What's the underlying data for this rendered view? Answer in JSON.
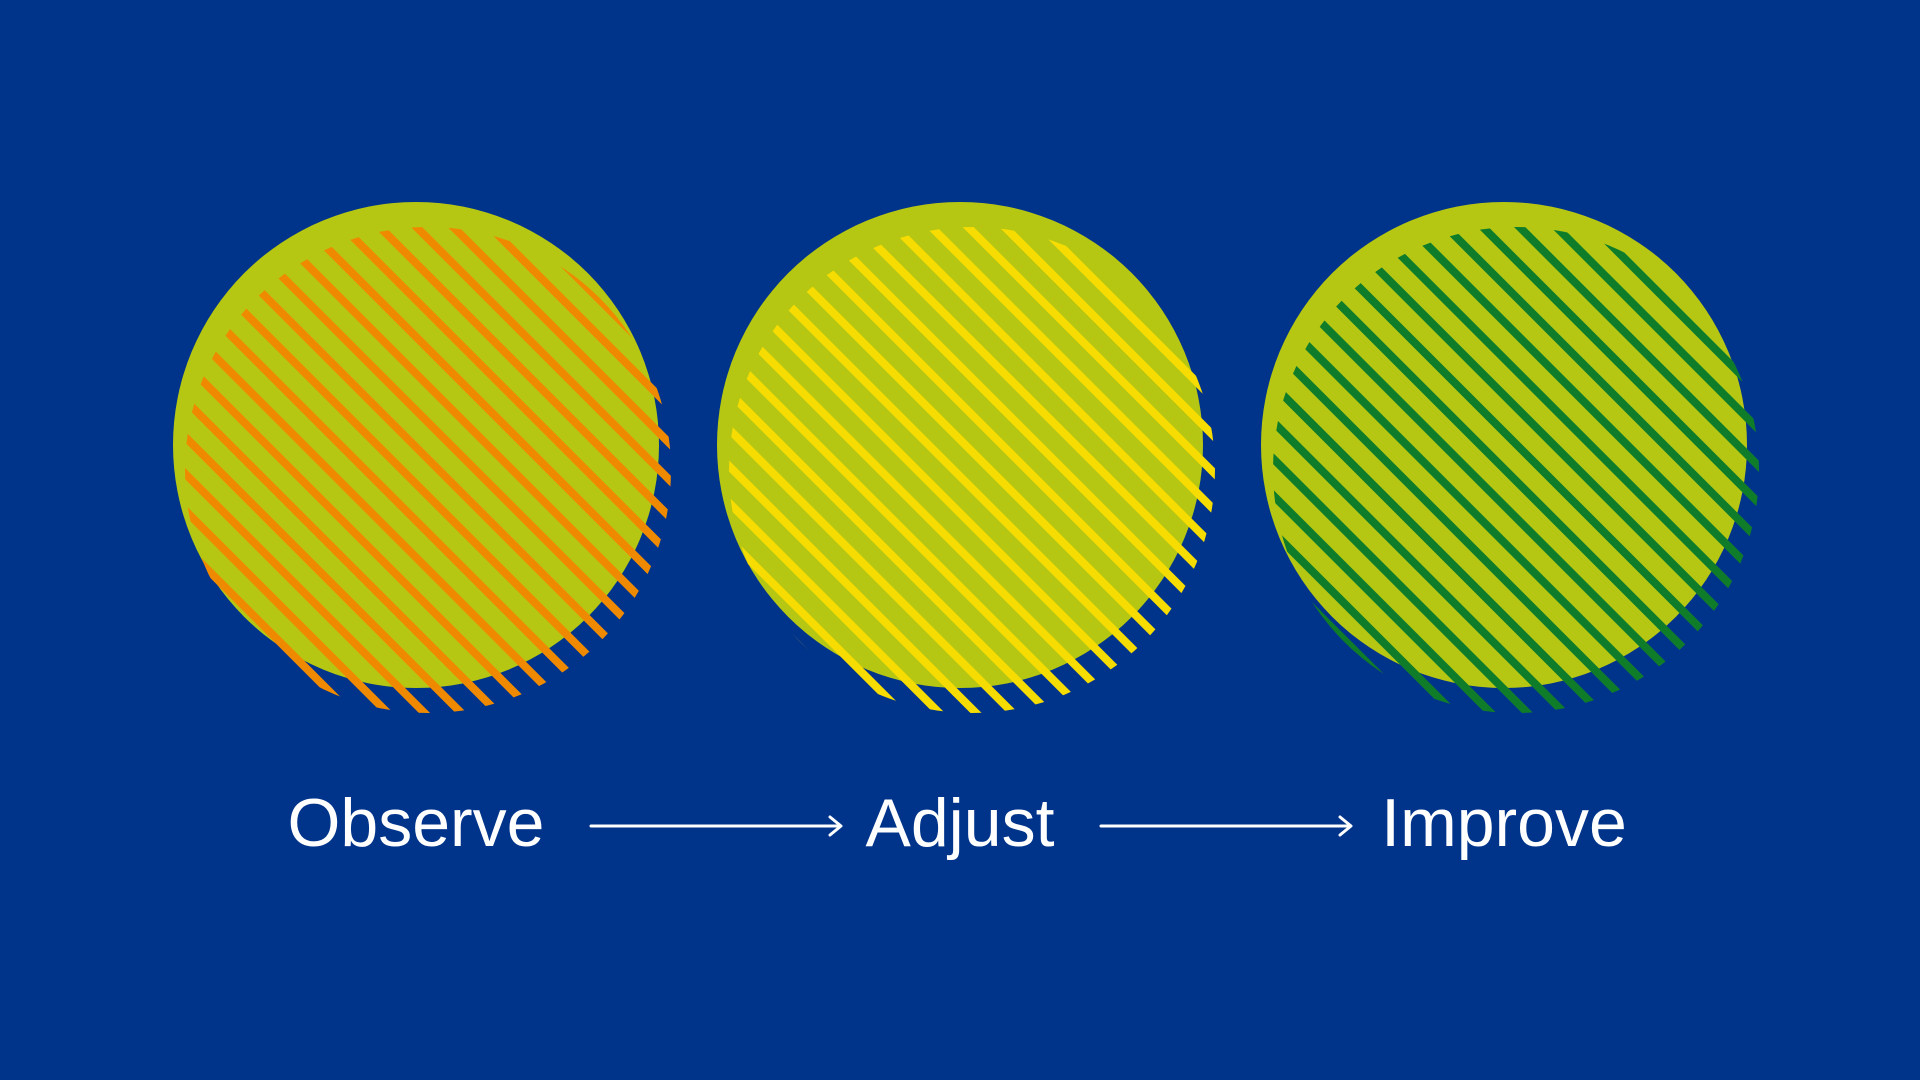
{
  "background": "#00338a",
  "circle_color": "#b5c713",
  "steps": [
    {
      "label": "Observe",
      "stripe_color": "#ef8a00"
    },
    {
      "label": "Adjust",
      "stripe_color": "#f6dc00"
    },
    {
      "label": "Improve",
      "stripe_color": "#0f7c2a"
    }
  ],
  "arrows": [
    {
      "from": "Observe",
      "to": "Adjust"
    },
    {
      "from": "Adjust",
      "to": "Improve"
    }
  ]
}
